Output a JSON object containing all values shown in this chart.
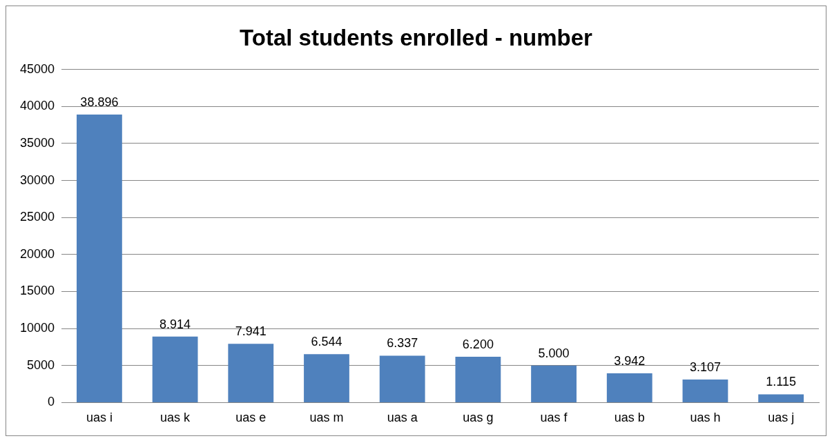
{
  "chart_data": {
    "type": "bar",
    "title": "Total students enrolled - number",
    "categories": [
      "uas i",
      "uas k",
      "uas e",
      "uas m",
      "uas a",
      "uas g",
      "uas f",
      "uas b",
      "uas h",
      "uas j"
    ],
    "values": [
      38896,
      8914,
      7941,
      6544,
      6337,
      6200,
      5000,
      3942,
      3107,
      1115
    ],
    "value_labels": [
      "38.896",
      "8.914",
      "7.941",
      "6.544",
      "6.337",
      "6.200",
      "5.000",
      "3.942",
      "3.107",
      "1.115"
    ],
    "color": "#4f81bd",
    "ylim": [
      0,
      45000
    ],
    "yticks": [
      0,
      5000,
      10000,
      15000,
      20000,
      25000,
      30000,
      35000,
      40000,
      45000
    ],
    "grid": "y",
    "legend": false
  }
}
